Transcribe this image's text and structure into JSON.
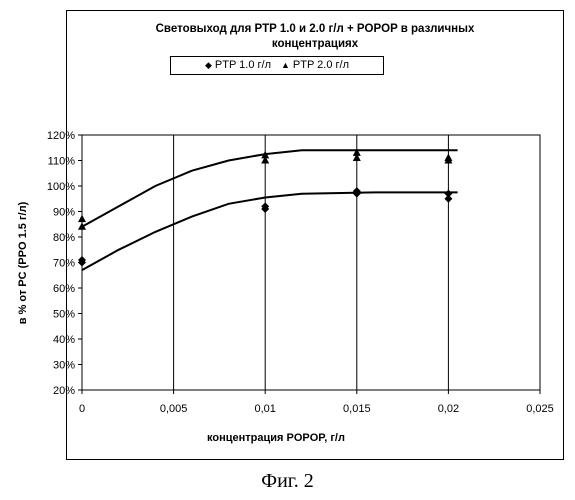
{
  "caption": "Фиг. 2",
  "chart_data": {
    "type": "scatter",
    "title_line1": "Световыход для PTP 1.0 и 2.0 г/л + POPOP в различных",
    "title_line2": "концентрациях",
    "xlabel": "концентрация POPOP, г/л",
    "ylabel": "в % от PC (PPO 1.5 г/л)",
    "xlim": [
      0,
      0.025
    ],
    "ylim": [
      20,
      120
    ],
    "x_ticks": [
      "0",
      "0,005",
      "0,01",
      "0,015",
      "0,02",
      "0,025"
    ],
    "x_tick_values": [
      0,
      0.005,
      0.01,
      0.015,
      0.02,
      0.025
    ],
    "y_ticks": [
      "20%",
      "30%",
      "40%",
      "50%",
      "60%",
      "70%",
      "80%",
      "90%",
      "100%",
      "110%",
      "120%"
    ],
    "y_tick_values": [
      20,
      30,
      40,
      50,
      60,
      70,
      80,
      90,
      100,
      110,
      120
    ],
    "vertical_grid": true,
    "legend_position": "top-center",
    "series": [
      {
        "name": "PTP 1.0 г/л",
        "marker": "diamond",
        "points": [
          [
            0,
            71
          ],
          [
            0,
            70
          ],
          [
            0.01,
            91
          ],
          [
            0.01,
            92
          ],
          [
            0.015,
            97
          ],
          [
            0.015,
            98
          ],
          [
            0.02,
            95
          ],
          [
            0.02,
            97
          ]
        ],
        "trend": [
          [
            0,
            67
          ],
          [
            0.002,
            75
          ],
          [
            0.004,
            82
          ],
          [
            0.006,
            88
          ],
          [
            0.008,
            93
          ],
          [
            0.01,
            95.5
          ],
          [
            0.012,
            97
          ],
          [
            0.016,
            97.5
          ],
          [
            0.0205,
            97.5
          ]
        ]
      },
      {
        "name": "PTP 2.0 г/л",
        "marker": "triangle",
        "points": [
          [
            0,
            84
          ],
          [
            0,
            87
          ],
          [
            0.01,
            110
          ],
          [
            0.01,
            112
          ],
          [
            0.015,
            111
          ],
          [
            0.015,
            113
          ],
          [
            0.02,
            110
          ],
          [
            0.02,
            111
          ]
        ],
        "trend": [
          [
            0,
            84
          ],
          [
            0.002,
            92
          ],
          [
            0.004,
            100
          ],
          [
            0.006,
            106
          ],
          [
            0.008,
            110
          ],
          [
            0.01,
            112.5
          ],
          [
            0.012,
            114
          ],
          [
            0.016,
            114
          ],
          [
            0.0205,
            114
          ]
        ]
      }
    ],
    "colors": {
      "axis": "#000000",
      "marks": "#000000",
      "background": "#ffffff"
    }
  }
}
